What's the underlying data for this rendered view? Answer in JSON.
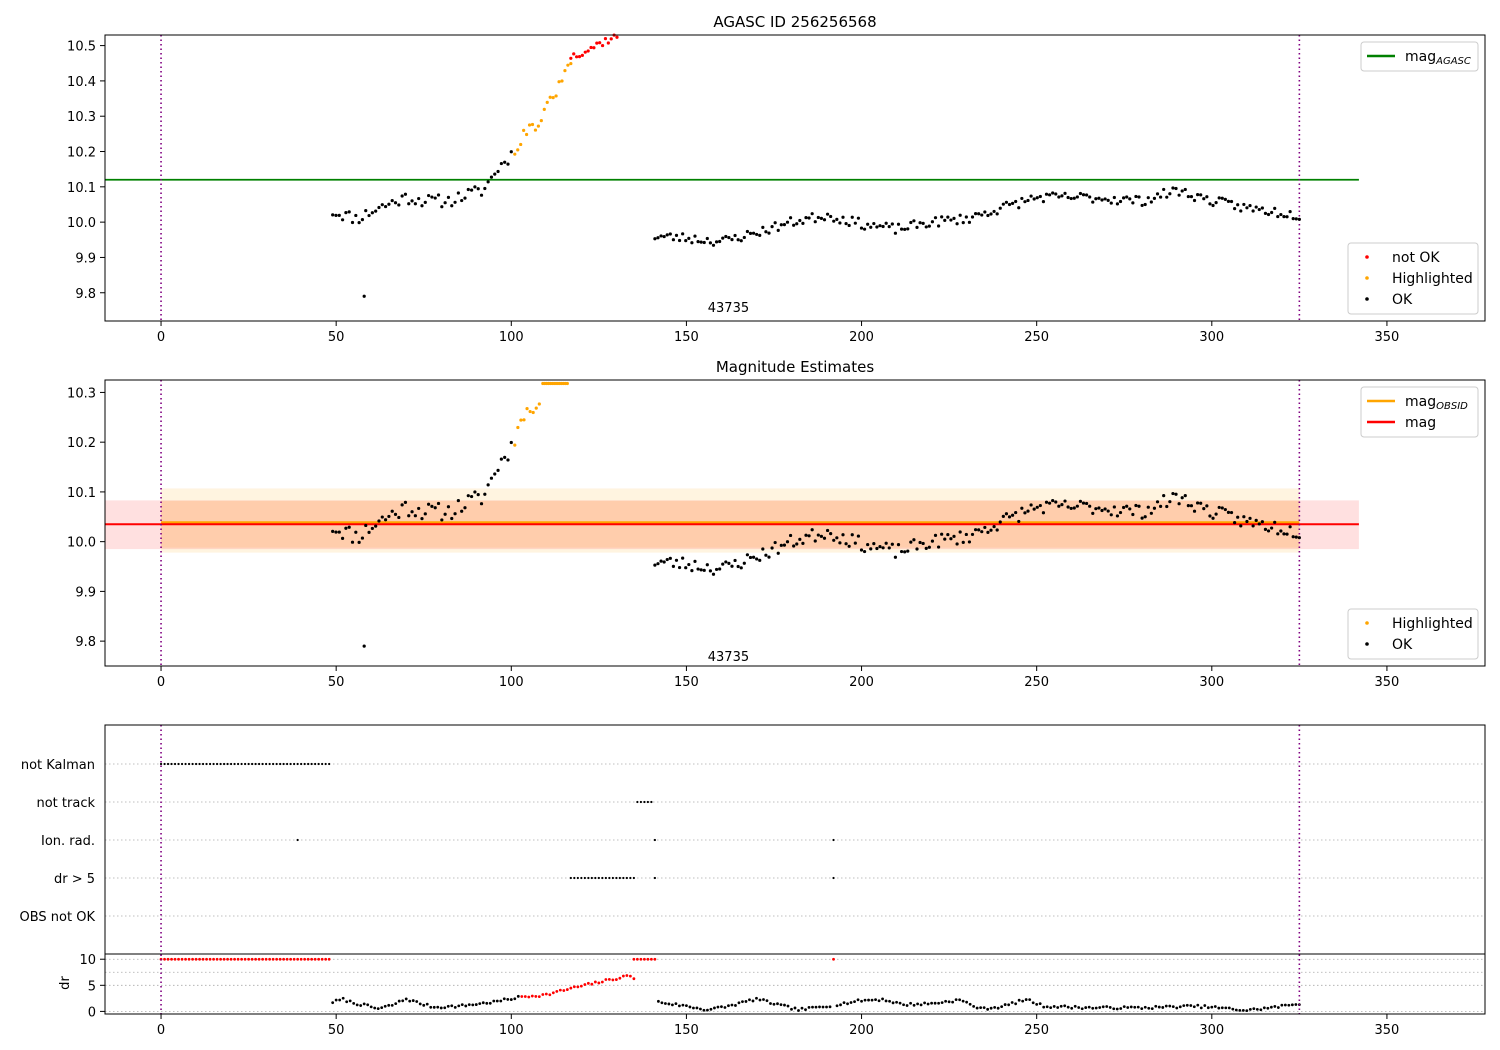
{
  "chart_data": [
    {
      "type": "scatter",
      "title": "AGASC ID 256256568",
      "xlim": [
        -16,
        378
      ],
      "ylim": [
        9.72,
        10.53
      ],
      "xticks": [
        0,
        50,
        100,
        150,
        200,
        250,
        300,
        350
      ],
      "yticks": [
        9.8,
        9.9,
        10.0,
        10.1,
        10.2,
        10.3,
        10.4,
        10.5
      ],
      "ytick_labels": [
        "9.8",
        "9.9",
        "10.0",
        "10.1",
        "10.2",
        "10.3",
        "10.4",
        "10.5"
      ],
      "obs_boundaries": [
        0,
        325
      ],
      "annotation": {
        "text": "43735",
        "x": 162,
        "y": 9.76
      },
      "reference_line": {
        "label": "mag",
        "label_sub": "AGASC",
        "value": 10.12,
        "x_range": [
          -16,
          342
        ],
        "color": "#008000"
      },
      "legend_top": {
        "position": "upper right",
        "entries": [
          {
            "label": "mag",
            "sub": "AGASC",
            "color": "#008000",
            "kind": "line"
          }
        ]
      },
      "legend_bottom": {
        "position": "lower right",
        "entries": [
          {
            "label": "not OK",
            "color": "#ff0000",
            "kind": "dot"
          },
          {
            "label": "Highlighted",
            "color": "#ffa500",
            "kind": "dot"
          },
          {
            "label": "OK",
            "color": "#000000",
            "kind": "dot"
          }
        ]
      },
      "series": [
        {
          "name": "OK",
          "color": "#000000",
          "segments": [
            {
              "x_start": 49,
              "x_end": 100,
              "n": 55,
              "y_knots": [
                [
                  49,
                  10.03
                ],
                [
                  56,
                  10.01
                ],
                [
                  62,
                  10.04
                ],
                [
                  70,
                  10.07
                ],
                [
                  76,
                  10.06
                ],
                [
                  82,
                  10.06
                ],
                [
                  88,
                  10.08
                ],
                [
                  92,
                  10.09
                ],
                [
                  96,
                  10.15
                ],
                [
                  100,
                  10.19
                ]
              ],
              "noise": 0.018,
              "seed": 11
            },
            {
              "x_start": 141,
              "x_end": 325,
              "n": 210,
              "y_knots": [
                [
                  141,
                  9.96
                ],
                [
                  150,
                  9.955
                ],
                [
                  160,
                  9.945
                ],
                [
                  170,
                  9.97
                ],
                [
                  180,
                  10.0
                ],
                [
                  190,
                  10.02
                ],
                [
                  200,
                  9.995
                ],
                [
                  210,
                  9.98
                ],
                [
                  220,
                  10.0
                ],
                [
                  230,
                  10.01
                ],
                [
                  240,
                  10.04
                ],
                [
                  250,
                  10.07
                ],
                [
                  265,
                  10.07
                ],
                [
                  280,
                  10.06
                ],
                [
                  290,
                  10.09
                ],
                [
                  300,
                  10.06
                ],
                [
                  310,
                  10.04
                ],
                [
                  325,
                  10.02
                ]
              ],
              "noise": 0.014,
              "seed": 23
            }
          ],
          "points": [
            [
              58,
              9.79
            ]
          ]
        },
        {
          "name": "Highlighted",
          "color": "#ffa500",
          "segments": [
            {
              "x_start": 101,
              "x_end": 117,
              "n": 20,
              "y_knots": [
                [
                  101,
                  10.2
                ],
                [
                  104,
                  10.26
                ],
                [
                  108,
                  10.28
                ],
                [
                  111,
                  10.34
                ],
                [
                  114,
                  10.39
                ],
                [
                  117,
                  10.46
                ]
              ],
              "noise": 0.015,
              "seed": 31
            }
          ],
          "points": []
        },
        {
          "name": "not OK",
          "color": "#ff0000",
          "segments": [
            {
              "x_start": 117,
              "x_end": 131,
              "n": 18,
              "y_knots": [
                [
                  117,
                  10.47
                ],
                [
                  122,
                  10.49
                ],
                [
                  126,
                  10.51
                ],
                [
                  131,
                  10.53
                ]
              ],
              "noise": 0.012,
              "seed": 37
            }
          ],
          "points": []
        }
      ]
    },
    {
      "type": "scatter",
      "title": "Magnitude Estimates",
      "xlim": [
        -16,
        378
      ],
      "ylim": [
        9.75,
        10.325
      ],
      "xticks": [
        0,
        50,
        100,
        150,
        200,
        250,
        300,
        350
      ],
      "yticks": [
        9.8,
        9.9,
        10.0,
        10.1,
        10.2,
        10.3
      ],
      "ytick_labels": [
        "9.8",
        "9.9",
        "10.0",
        "10.1",
        "10.2",
        "10.3"
      ],
      "obs_boundaries": [
        0,
        325
      ],
      "annotation": {
        "text": "43735",
        "x": 162,
        "y": 9.77
      },
      "bands": [
        {
          "x_range": [
            0,
            325
          ],
          "y_range": [
            9.978,
            10.107
          ],
          "color": "#ffa500",
          "opacity": 0.12
        },
        {
          "x_range": [
            -16,
            342
          ],
          "y_range": [
            9.985,
            10.083
          ],
          "color": "#ff0000",
          "opacity": 0.12
        },
        {
          "x_range": [
            0,
            325
          ],
          "y_range": [
            9.988,
            10.082
          ],
          "color": "#ff8c00",
          "opacity": 0.12
        }
      ],
      "lines": [
        {
          "label": "mag",
          "label_sub": "OBSID",
          "value": 10.038,
          "x_range": [
            0,
            325
          ],
          "color": "#ffa500",
          "width": 3
        },
        {
          "label": "mag",
          "label_sub": "",
          "value": 10.035,
          "x_range": [
            -16,
            342
          ],
          "color": "#ff0000",
          "width": 2
        }
      ],
      "legend_top": {
        "position": "upper right",
        "entries": [
          {
            "label": "mag",
            "sub": "OBSID",
            "color": "#ffa500",
            "kind": "line"
          },
          {
            "label": "mag",
            "sub": "",
            "color": "#ff0000",
            "kind": "line"
          }
        ]
      },
      "legend_bottom": {
        "position": "lower right",
        "entries": [
          {
            "label": "Highlighted",
            "color": "#ffa500",
            "kind": "dot"
          },
          {
            "label": "OK",
            "color": "#000000",
            "kind": "dot"
          }
        ]
      },
      "series": [
        {
          "name": "OK",
          "color": "#000000",
          "segments": [
            {
              "x_start": 49,
              "x_end": 100,
              "n": 55,
              "y_knots": [
                [
                  49,
                  10.03
                ],
                [
                  56,
                  10.01
                ],
                [
                  62,
                  10.04
                ],
                [
                  70,
                  10.07
                ],
                [
                  76,
                  10.06
                ],
                [
                  82,
                  10.06
                ],
                [
                  88,
                  10.08
                ],
                [
                  92,
                  10.09
                ],
                [
                  96,
                  10.15
                ],
                [
                  100,
                  10.19
                ]
              ],
              "noise": 0.018,
              "seed": 11
            },
            {
              "x_start": 141,
              "x_end": 325,
              "n": 210,
              "y_knots": [
                [
                  141,
                  9.96
                ],
                [
                  150,
                  9.955
                ],
                [
                  160,
                  9.945
                ],
                [
                  170,
                  9.97
                ],
                [
                  180,
                  10.0
                ],
                [
                  190,
                  10.02
                ],
                [
                  200,
                  9.995
                ],
                [
                  210,
                  9.98
                ],
                [
                  220,
                  10.0
                ],
                [
                  230,
                  10.01
                ],
                [
                  240,
                  10.04
                ],
                [
                  250,
                  10.07
                ],
                [
                  265,
                  10.07
                ],
                [
                  280,
                  10.06
                ],
                [
                  290,
                  10.09
                ],
                [
                  300,
                  10.06
                ],
                [
                  310,
                  10.04
                ],
                [
                  325,
                  10.02
                ]
              ],
              "noise": 0.014,
              "seed": 23
            }
          ],
          "points": [
            [
              58,
              9.79
            ]
          ]
        },
        {
          "name": "Highlighted",
          "color": "#ffa500",
          "segments": [
            {
              "x_start": 101,
              "x_end": 108,
              "n": 9,
              "y_knots": [
                [
                  101,
                  10.2
                ],
                [
                  104,
                  10.26
                ],
                [
                  108,
                  10.28
                ]
              ],
              "noise": 0.012,
              "seed": 41
            },
            {
              "x_start": 109,
              "x_end": 116,
              "n": 14,
              "y_knots": [
                [
                  109,
                  10.318
                ],
                [
                  116,
                  10.318
                ]
              ],
              "noise": 0.0,
              "seed": 43
            }
          ],
          "points": []
        }
      ]
    },
    {
      "type": "scatter",
      "xlim": [
        -16,
        378
      ],
      "xticks": [
        0,
        50,
        100,
        150,
        200,
        250,
        300,
        350
      ],
      "obs_boundaries": [
        0,
        325
      ],
      "flag_rows": [
        {
          "label": "not Kalman",
          "runs": [
            [
              0,
              48,
              1
            ]
          ],
          "points": []
        },
        {
          "label": "not track",
          "runs": [
            [
              136,
              140,
              1
            ]
          ],
          "points": []
        },
        {
          "label": "Ion. rad.",
          "runs": [],
          "points": [
            39,
            141,
            192
          ]
        },
        {
          "label": "dr > 5",
          "runs": [
            [
              117,
              135,
              1
            ]
          ],
          "points": [
            141,
            192
          ]
        },
        {
          "label": "OBS not OK",
          "runs": [],
          "points": []
        }
      ],
      "dr": {
        "ylabel": "dr",
        "ylim": [
          -0.5,
          11
        ],
        "yticks": [
          0,
          5,
          10
        ],
        "ytick_labels": [
          "0",
          "5",
          "10"
        ],
        "threshold": 5,
        "clip_value": 10,
        "color_ok": "#000000",
        "color_bad": "#ff0000",
        "clipped": [
          [
            0,
            48,
            1
          ],
          [
            135,
            141,
            1
          ],
          [
            192,
            192,
            1
          ]
        ],
        "knots": [
          [
            49,
            1.8
          ],
          [
            52,
            2.3
          ],
          [
            55,
            1.6
          ],
          [
            58,
            1.2
          ],
          [
            62,
            0.5
          ],
          [
            66,
            1.2
          ],
          [
            70,
            2.4
          ],
          [
            74,
            1.5
          ],
          [
            78,
            0.8
          ],
          [
            85,
            1.0
          ],
          [
            95,
            1.8
          ],
          [
            103,
            2.8
          ],
          [
            110,
            3.2
          ],
          [
            117,
            4.4
          ],
          [
            125,
            5.6
          ],
          [
            134,
            6.9
          ],
          [
            142,
            1.8
          ],
          [
            150,
            1.0
          ],
          [
            156,
            0.3
          ],
          [
            162,
            1.0
          ],
          [
            170,
            2.4
          ],
          [
            176,
            1.3
          ],
          [
            182,
            0.3
          ],
          [
            190,
            1.0
          ],
          [
            200,
            2.1
          ],
          [
            206,
            2.3
          ],
          [
            212,
            1.3
          ],
          [
            220,
            1.5
          ],
          [
            228,
            2.2
          ],
          [
            234,
            0.5
          ],
          [
            240,
            0.9
          ],
          [
            247,
            2.3
          ],
          [
            252,
            1.0
          ],
          [
            265,
            0.7
          ],
          [
            280,
            0.7
          ],
          [
            295,
            1.0
          ],
          [
            300,
            0.8
          ],
          [
            310,
            0.2
          ],
          [
            318,
            0.8
          ],
          [
            325,
            1.5
          ]
        ],
        "x_range": [
          49,
          325
        ],
        "step": 1,
        "noise": 0.25,
        "seed": 7
      }
    }
  ]
}
